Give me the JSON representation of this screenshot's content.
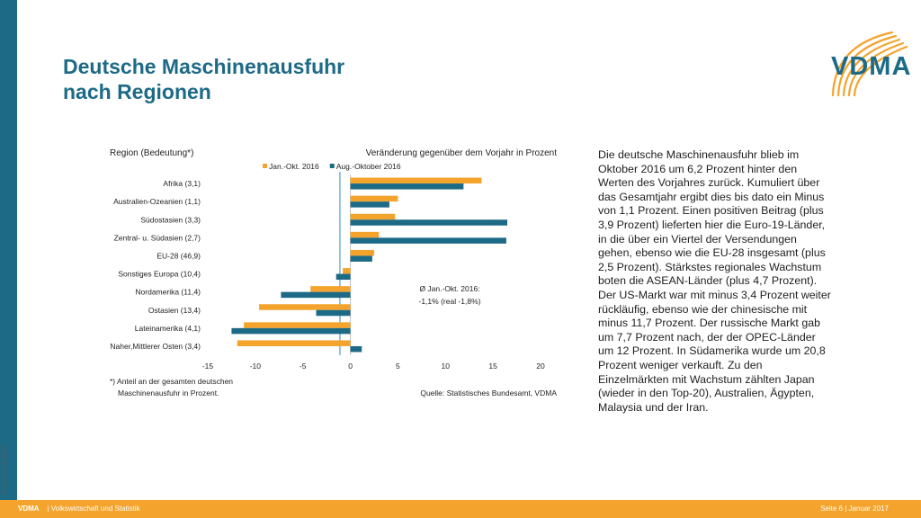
{
  "side_label": "Konjunkturbulletin",
  "title": {
    "line1": "Deutsche Maschinenausfuhr",
    "line2": "nach Regionen"
  },
  "logo": {
    "text": "VDMA"
  },
  "body_text": "Die deutsche Maschinenausfuhr blieb im Oktober 2016 um 6,2 Prozent hinter den Werten des Vorjahres zurück. Kumuliert über das Gesamtjahr ergibt dies bis dato ein Minus von 1,1 Prozent. Einen positiven Beitrag (plus 3,9 Prozent) lieferten hier die Euro-19-Länder, in die über ein Viertel der Versendungen gehen, ebenso wie die EU-28 insgesamt (plus 2,5 Prozent). Stärkstes regionales Wachstum boten die ASEAN-Länder (plus 4,7 Prozent). Der US-Markt war mit minus 3,4 Prozent weiter rückläufig, ebenso wie der chinesische mit minus 11,7 Prozent. Der russische Markt gab um 7,7 Prozent nach, der der OPEC-Länder um 12 Prozent. In Südamerika wurde um 20,8 Prozent weniger verkauft. Zu den Einzelmärkten mit Wachstum zählten Japan (wieder in den Top-20), Australien, Ägypten, Malaysia und der Iran.",
  "footer": {
    "brand": "VDMA",
    "left": "| Volkswirtschaft und Statistik",
    "right": "Seite 6 | Januar 2017"
  },
  "colors": {
    "primary": "#1d6a87",
    "accent": "#f4a32c",
    "ref_line": "#5aa9c8",
    "text": "#1f1f1f"
  },
  "chart_data": {
    "type": "bar",
    "orientation": "horizontal",
    "left_header": "Region (Bedeutung*)",
    "right_header": "Veränderung gegenüber dem Vorjahr in Prozent",
    "categories": [
      "Afrika (3,1)",
      "Australien-Ozeanien (1,1)",
      "Südostasien (3,3)",
      "Zentral- u. Südasien (2,7)",
      "EU-28 (46,9)",
      "Sonstiges Europa (10,4)",
      "Nordamerika (11,4)",
      "Ostasien (13,4)",
      "Lateinamerika (4,1)",
      "Naher,Mittlerer Osten (3,4)"
    ],
    "series": [
      {
        "name": "Jan.-Okt. 2016",
        "color": "#f4a32c",
        "values": [
          13.8,
          5.0,
          4.7,
          3.0,
          2.5,
          -0.8,
          -4.2,
          -9.6,
          -11.2,
          -11.9
        ]
      },
      {
        "name": "Aug.-Oktober 2016",
        "color": "#1d6a87",
        "values": [
          11.9,
          4.1,
          16.5,
          16.4,
          2.3,
          -1.5,
          -7.3,
          -3.6,
          -12.5,
          1.2
        ]
      }
    ],
    "xlim": [
      -15,
      20
    ],
    "xticks": [
      -15,
      -10,
      -5,
      0,
      5,
      10,
      15,
      20
    ],
    "reference_line": -1.1,
    "annotation": {
      "line1": "Ø Jan.-Okt. 2016:",
      "line2": "-1,1% (real -1,8%)"
    },
    "footnote": {
      "line1": "*) Anteil an der gesamten deutschen",
      "line2": "Maschinenausfuhr in Prozent."
    },
    "source": "Quelle: Statistisches Bundesamt, VDMA",
    "legend_position": "top-center",
    "grid": false
  }
}
